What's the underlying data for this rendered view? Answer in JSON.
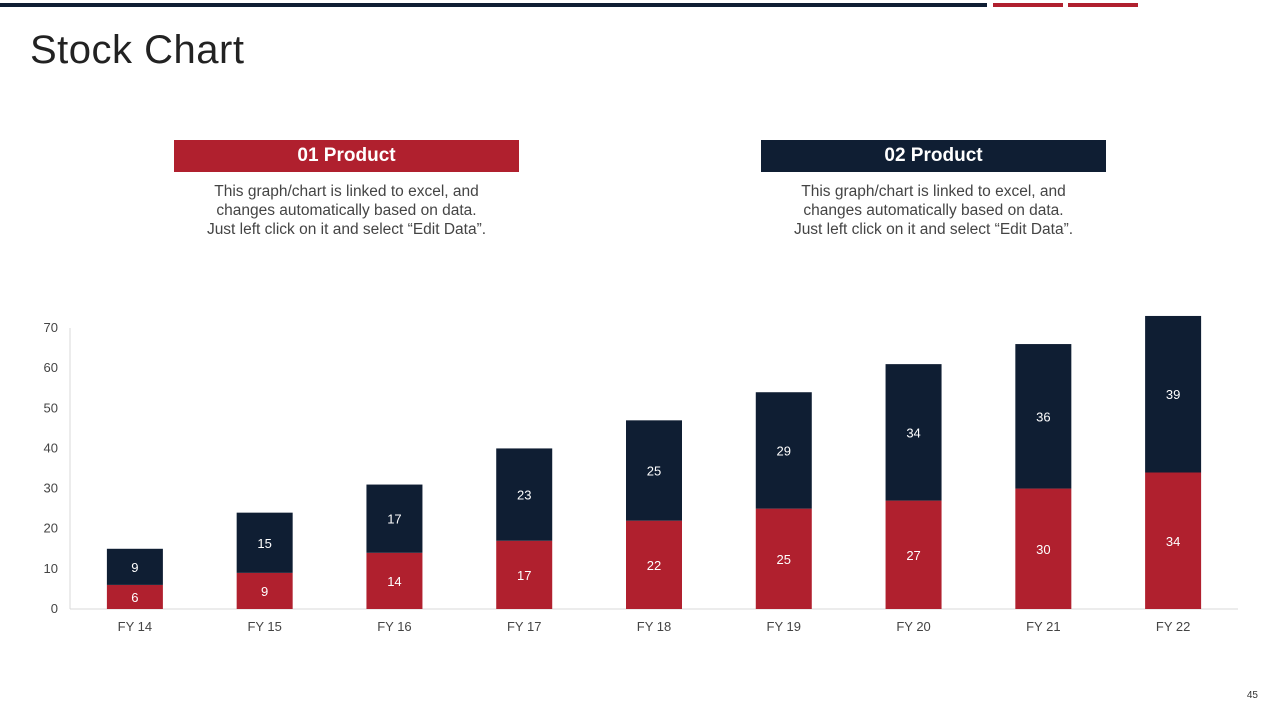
{
  "slide": {
    "title": "Stock Chart",
    "page_number": "45"
  },
  "colors": {
    "navy": "#0f1e33",
    "red": "#b0202e"
  },
  "products": [
    {
      "label": "01 Product",
      "desc": [
        "This graph/chart is linked to excel, and",
        "changes automatically based on data.",
        "Just left click on it and select “Edit Data”."
      ]
    },
    {
      "label": "02 Product",
      "desc": [
        "This graph/chart is linked to excel, and",
        "changes automatically based on data.",
        "Just left click on it and select “Edit Data”."
      ]
    }
  ],
  "chart_data": {
    "type": "bar",
    "stacked": true,
    "title": "",
    "xlabel": "",
    "ylabel": "",
    "ylim": [
      0,
      70
    ],
    "yticks": [
      0,
      10,
      20,
      30,
      40,
      50,
      60,
      70
    ],
    "categories": [
      "FY 14",
      "FY 15",
      "FY 16",
      "FY 17",
      "FY 18",
      "FY 19",
      "FY 20",
      "FY 21",
      "FY 22"
    ],
    "series": [
      {
        "name": "01 Product",
        "color": "#b0202e",
        "values": [
          6,
          9,
          14,
          17,
          22,
          25,
          27,
          30,
          34
        ]
      },
      {
        "name": "02 Product",
        "color": "#0f1e33",
        "values": [
          9,
          15,
          17,
          23,
          25,
          29,
          34,
          36,
          39
        ]
      }
    ]
  }
}
